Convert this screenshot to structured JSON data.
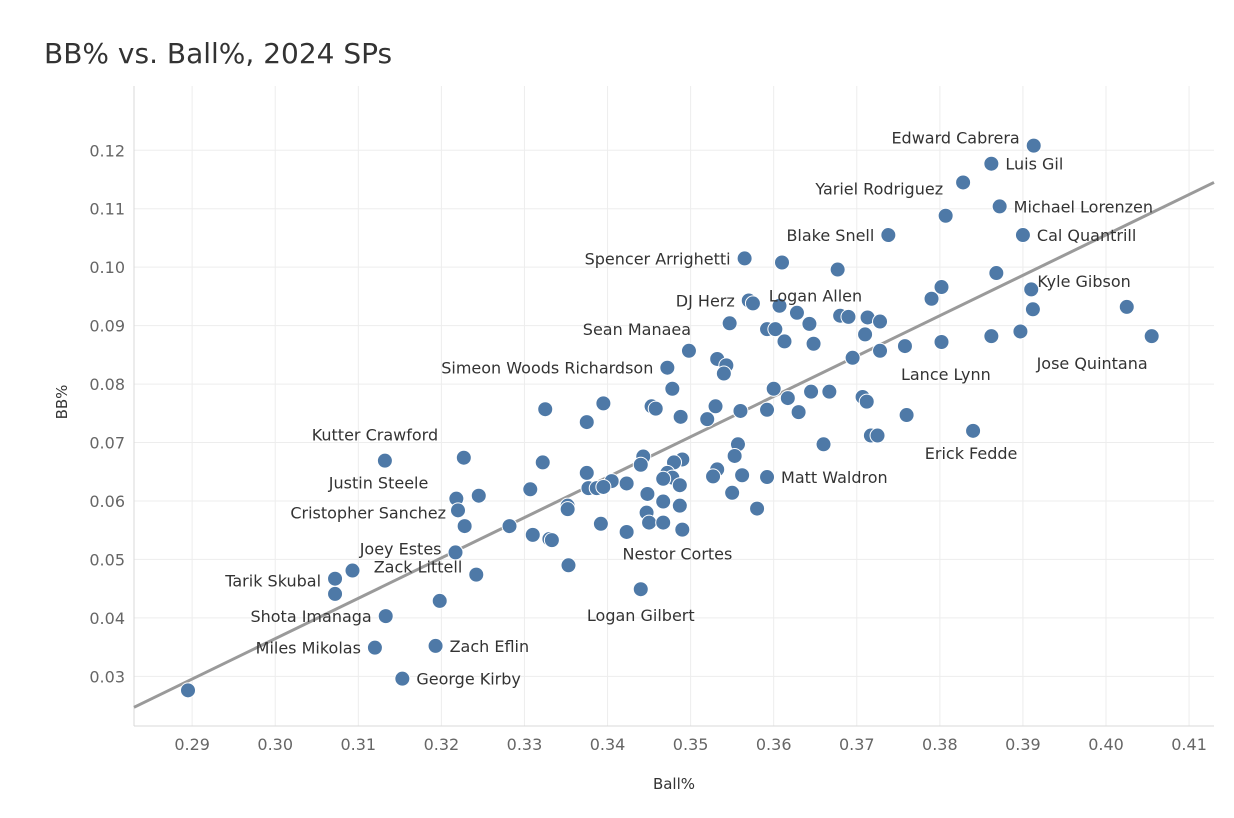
{
  "chart_data": {
    "type": "scatter",
    "title": "BB% vs. Ball%, 2024 SPs",
    "xlabel": "Ball%",
    "ylabel": "BB%",
    "xlim": [
      0.283,
      0.413
    ],
    "ylim": [
      0.0215,
      0.131
    ],
    "x_ticks": [
      "0.29",
      "0.30",
      "0.31",
      "0.32",
      "0.33",
      "0.34",
      "0.35",
      "0.36",
      "0.37",
      "0.38",
      "0.39",
      "0.40",
      "0.41"
    ],
    "x_tick_values": [
      0.29,
      0.3,
      0.31,
      0.32,
      0.33,
      0.34,
      0.35,
      0.36,
      0.37,
      0.38,
      0.39,
      0.4,
      0.41
    ],
    "y_ticks": [
      "0.03",
      "0.04",
      "0.05",
      "0.06",
      "0.07",
      "0.08",
      "0.09",
      "0.10",
      "0.11",
      "0.12"
    ],
    "y_tick_values": [
      0.03,
      0.04,
      0.05,
      0.06,
      0.07,
      0.08,
      0.09,
      0.1,
      0.11,
      0.12
    ],
    "grid": true,
    "point_color": "#4e79a7",
    "trend_color": "#9a9a9a",
    "trendline": {
      "x": [
        0.283,
        0.413
      ],
      "y": [
        0.0247,
        0.1145
      ]
    },
    "points": [
      {
        "x": 0.3913,
        "y": 0.1208,
        "label": "Edward Cabrera",
        "anchor": "end",
        "dx": -14,
        "dy": -2
      },
      {
        "x": 0.3862,
        "y": 0.1177,
        "label": "Luis Gil",
        "anchor": "start",
        "dx": 14,
        "dy": 6
      },
      {
        "x": 0.3828,
        "y": 0.1145,
        "label": "Yariel Rodriguez",
        "anchor": "end",
        "dx": -20,
        "dy": 12
      },
      {
        "x": 0.3872,
        "y": 0.1104,
        "label": "Michael Lorenzen",
        "anchor": "start",
        "dx": 14,
        "dy": 6
      },
      {
        "x": 0.3807,
        "y": 0.1088
      },
      {
        "x": 0.3738,
        "y": 0.1055,
        "label": "Blake Snell",
        "anchor": "end",
        "dx": -14,
        "dy": 6
      },
      {
        "x": 0.39,
        "y": 0.1055,
        "label": "Cal Quantrill",
        "anchor": "start",
        "dx": 14,
        "dy": 6
      },
      {
        "x": 0.3565,
        "y": 0.1015,
        "label": "Spencer Arrighetti",
        "anchor": "end",
        "dx": -14,
        "dy": 6
      },
      {
        "x": 0.361,
        "y": 0.1008
      },
      {
        "x": 0.3677,
        "y": 0.0996
      },
      {
        "x": 0.3868,
        "y": 0.099
      },
      {
        "x": 0.3802,
        "y": 0.0966
      },
      {
        "x": 0.391,
        "y": 0.0962
      },
      {
        "x": 0.379,
        "y": 0.0946
      },
      {
        "x": 0.357,
        "y": 0.0943,
        "label": "DJ Herz",
        "anchor": "end",
        "dx": -14,
        "dy": 6
      },
      {
        "x": 0.3575,
        "y": 0.0938
      },
      {
        "x": 0.3607,
        "y": 0.0934
      },
      {
        "x": 0.4025,
        "y": 0.0932,
        "label": "Kyle Gibson",
        "anchor": "end",
        "dx": 4,
        "dy": -20
      },
      {
        "x": 0.3912,
        "y": 0.0928
      },
      {
        "x": 0.3628,
        "y": 0.0922
      },
      {
        "x": 0.368,
        "y": 0.0917,
        "label": "Logan Allen",
        "anchor": "end",
        "dx": 22,
        "dy": -14
      },
      {
        "x": 0.369,
        "y": 0.0915
      },
      {
        "x": 0.3713,
        "y": 0.0914
      },
      {
        "x": 0.3728,
        "y": 0.0907
      },
      {
        "x": 0.3547,
        "y": 0.0904
      },
      {
        "x": 0.3643,
        "y": 0.0903
      },
      {
        "x": 0.3592,
        "y": 0.0894,
        "label": "Sean Manaea",
        "anchor": "end",
        "dx": -76,
        "dy": 6
      },
      {
        "x": 0.3602,
        "y": 0.0894
      },
      {
        "x": 0.3897,
        "y": 0.089
      },
      {
        "x": 0.371,
        "y": 0.0885
      },
      {
        "x": 0.3862,
        "y": 0.0882
      },
      {
        "x": 0.4055,
        "y": 0.0882,
        "label": "Jose Quintana",
        "anchor": "end",
        "dx": -4,
        "dy": 33
      },
      {
        "x": 0.3613,
        "y": 0.0873
      },
      {
        "x": 0.3802,
        "y": 0.0872
      },
      {
        "x": 0.3648,
        "y": 0.0869
      },
      {
        "x": 0.3758,
        "y": 0.0865,
        "label": "Lance Lynn",
        "anchor": "start",
        "dx": -4,
        "dy": 34
      },
      {
        "x": 0.3498,
        "y": 0.0857
      },
      {
        "x": 0.3728,
        "y": 0.0857
      },
      {
        "x": 0.3695,
        "y": 0.0845
      },
      {
        "x": 0.3532,
        "y": 0.0843
      },
      {
        "x": 0.3543,
        "y": 0.0832
      },
      {
        "x": 0.3472,
        "y": 0.0828,
        "label": "Simeon Woods Richardson",
        "anchor": "end",
        "dx": -14,
        "dy": 6
      },
      {
        "x": 0.354,
        "y": 0.0818
      },
      {
        "x": 0.3478,
        "y": 0.0792
      },
      {
        "x": 0.36,
        "y": 0.0792
      },
      {
        "x": 0.3645,
        "y": 0.0787
      },
      {
        "x": 0.3667,
        "y": 0.0787
      },
      {
        "x": 0.3707,
        "y": 0.0778
      },
      {
        "x": 0.3617,
        "y": 0.0776
      },
      {
        "x": 0.3712,
        "y": 0.077
      },
      {
        "x": 0.3395,
        "y": 0.0767
      },
      {
        "x": 0.353,
        "y": 0.0762
      },
      {
        "x": 0.3453,
        "y": 0.0762
      },
      {
        "x": 0.3458,
        "y": 0.0758
      },
      {
        "x": 0.3325,
        "y": 0.0757
      },
      {
        "x": 0.356,
        "y": 0.0754
      },
      {
        "x": 0.3592,
        "y": 0.0756
      },
      {
        "x": 0.363,
        "y": 0.0752
      },
      {
        "x": 0.376,
        "y": 0.0747
      },
      {
        "x": 0.3488,
        "y": 0.0744
      },
      {
        "x": 0.352,
        "y": 0.074
      },
      {
        "x": 0.3375,
        "y": 0.0735
      },
      {
        "x": 0.384,
        "y": 0.072,
        "label": "Erick Fedde",
        "anchor": "middle",
        "dx": -2,
        "dy": 28
      },
      {
        "x": 0.3717,
        "y": 0.0712
      },
      {
        "x": 0.3725,
        "y": 0.0712
      },
      {
        "x": 0.3557,
        "y": 0.0697
      },
      {
        "x": 0.366,
        "y": 0.0697
      },
      {
        "x": 0.3132,
        "y": 0.0669,
        "label": "Kutter Crawford",
        "anchor": "middle",
        "dx": -10,
        "dy": -20
      },
      {
        "x": 0.3227,
        "y": 0.0674
      },
      {
        "x": 0.3443,
        "y": 0.0676
      },
      {
        "x": 0.3553,
        "y": 0.0677
      },
      {
        "x": 0.349,
        "y": 0.0671
      },
      {
        "x": 0.3322,
        "y": 0.0666
      },
      {
        "x": 0.348,
        "y": 0.0666
      },
      {
        "x": 0.344,
        "y": 0.0662
      },
      {
        "x": 0.3532,
        "y": 0.0654
      },
      {
        "x": 0.3375,
        "y": 0.0648
      },
      {
        "x": 0.3472,
        "y": 0.0648
      },
      {
        "x": 0.3527,
        "y": 0.0642
      },
      {
        "x": 0.3562,
        "y": 0.0644
      },
      {
        "x": 0.3592,
        "y": 0.0641,
        "label": "Matt Waldron",
        "anchor": "start",
        "dx": 14,
        "dy": 6
      },
      {
        "x": 0.3478,
        "y": 0.064
      },
      {
        "x": 0.3467,
        "y": 0.0638
      },
      {
        "x": 0.3405,
        "y": 0.0634
      },
      {
        "x": 0.3423,
        "y": 0.063
      },
      {
        "x": 0.3487,
        "y": 0.0627
      },
      {
        "x": 0.3377,
        "y": 0.0622
      },
      {
        "x": 0.3387,
        "y": 0.0622
      },
      {
        "x": 0.3395,
        "y": 0.0624
      },
      {
        "x": 0.3307,
        "y": 0.062
      },
      {
        "x": 0.355,
        "y": 0.0614
      },
      {
        "x": 0.3448,
        "y": 0.0612
      },
      {
        "x": 0.3245,
        "y": 0.0609
      },
      {
        "x": 0.3218,
        "y": 0.0604,
        "label": "Justin Steele",
        "anchor": "end",
        "dx": -28,
        "dy": -10
      },
      {
        "x": 0.3467,
        "y": 0.0599
      },
      {
        "x": 0.3352,
        "y": 0.0592
      },
      {
        "x": 0.3487,
        "y": 0.0592
      },
      {
        "x": 0.358,
        "y": 0.0587
      },
      {
        "x": 0.3352,
        "y": 0.0586
      },
      {
        "x": 0.322,
        "y": 0.0584,
        "label": "Cristopher Sanchez",
        "anchor": "end",
        "dx": -12,
        "dy": 8
      },
      {
        "x": 0.3447,
        "y": 0.058
      },
      {
        "x": 0.3392,
        "y": 0.0561
      },
      {
        "x": 0.345,
        "y": 0.0563
      },
      {
        "x": 0.3467,
        "y": 0.0563
      },
      {
        "x": 0.3228,
        "y": 0.0557
      },
      {
        "x": 0.3282,
        "y": 0.0557
      },
      {
        "x": 0.349,
        "y": 0.0551
      },
      {
        "x": 0.3423,
        "y": 0.0547
      },
      {
        "x": 0.331,
        "y": 0.0542
      },
      {
        "x": 0.333,
        "y": 0.0535
      },
      {
        "x": 0.3333,
        "y": 0.0533
      },
      {
        "x": 0.3217,
        "y": 0.0512,
        "label": "Joey Estes",
        "anchor": "end",
        "dx": -14,
        "dy": 2
      },
      {
        "x": 0.3353,
        "y": 0.049,
        "label": "Nestor Cortes",
        "anchor": "start",
        "dx": 54,
        "dy": -6
      },
      {
        "x": 0.3093,
        "y": 0.0481
      },
      {
        "x": 0.3242,
        "y": 0.0474,
        "label": "Zack Littell",
        "anchor": "end",
        "dx": -14,
        "dy": -2
      },
      {
        "x": 0.3072,
        "y": 0.0467,
        "label": "Tarik Skubal",
        "anchor": "end",
        "dx": -14,
        "dy": 8
      },
      {
        "x": 0.344,
        "y": 0.0449,
        "label": "Logan Gilbert",
        "anchor": "middle",
        "dx": 0,
        "dy": 32
      },
      {
        "x": 0.3072,
        "y": 0.0441
      },
      {
        "x": 0.3198,
        "y": 0.0429
      },
      {
        "x": 0.3133,
        "y": 0.0403,
        "label": "Shota Imanaga",
        "anchor": "end",
        "dx": -14,
        "dy": 6
      },
      {
        "x": 0.3193,
        "y": 0.0352,
        "label": "Zach Eflin",
        "anchor": "start",
        "dx": 14,
        "dy": 6
      },
      {
        "x": 0.312,
        "y": 0.0349,
        "label": "Miles Mikolas",
        "anchor": "end",
        "dx": -14,
        "dy": 6
      },
      {
        "x": 0.3153,
        "y": 0.0296,
        "label": "George Kirby",
        "anchor": "start",
        "dx": 14,
        "dy": 6
      },
      {
        "x": 0.2895,
        "y": 0.0276
      }
    ]
  }
}
